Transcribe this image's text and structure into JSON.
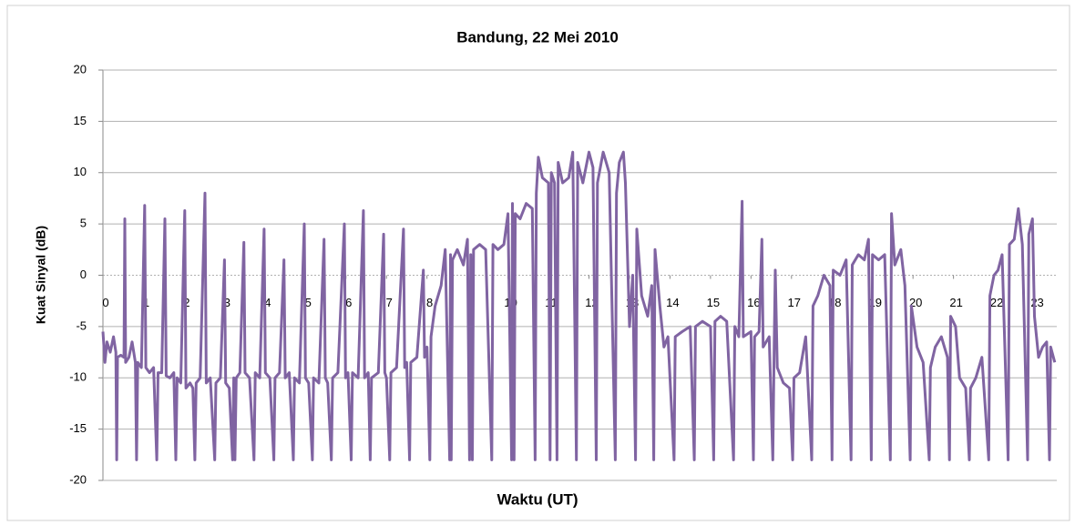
{
  "chart_data": {
    "type": "line",
    "title": "Bandung, 22 Mei 2010",
    "xlabel": "Waktu (UT)",
    "ylabel": "Kuat Sinyal (dB)",
    "color": "#8064a2",
    "grid": true,
    "xlim": [
      0,
      23.55
    ],
    "xticks": [
      0,
      1,
      2,
      3,
      4,
      5,
      6,
      7,
      8,
      9,
      10,
      11,
      12,
      13,
      14,
      15,
      16,
      17,
      18,
      19,
      20,
      21,
      22,
      23
    ],
    "ylim": [
      -20,
      20
    ],
    "yticks": [
      -20,
      -15,
      -10,
      -5,
      0,
      5,
      10,
      15,
      20
    ],
    "x": [
      0,
      0.05,
      0.1,
      0.18,
      0.26,
      0.32,
      0.34,
      0.36,
      0.44,
      0.52,
      0.54,
      0.56,
      0.64,
      0.72,
      0.8,
      0.83,
      0.86,
      0.95,
      1.03,
      1.06,
      1.15,
      1.25,
      1.33,
      1.36,
      1.45,
      1.53,
      1.56,
      1.65,
      1.75,
      1.8,
      1.83,
      1.92,
      2.02,
      2.05,
      2.15,
      2.22,
      2.27,
      2.3,
      2.4,
      2.52,
      2.55,
      2.65,
      2.76,
      2.79,
      2.9,
      3,
      3.03,
      3.12,
      3.2,
      3.23,
      3.26,
      3.29,
      3.38,
      3.48,
      3.51,
      3.62,
      3.73,
      3.76,
      3.87,
      3.98,
      4.01,
      4.12,
      4.22,
      4.25,
      4.36,
      4.47,
      4.5,
      4.6,
      4.7,
      4.73,
      4.85,
      4.97,
      5,
      5.08,
      5.17,
      5.2,
      5.33,
      5.46,
      5.49,
      5.55,
      5.64,
      5.67,
      5.8,
      5.96,
      5.99,
      6.05,
      6.13,
      6.16,
      6.3,
      6.43,
      6.46,
      6.55,
      6.6,
      6.63,
      6.8,
      6.93,
      6.96,
      7,
      7.08,
      7.11,
      7.25,
      7.42,
      7.45,
      7.5,
      7.57,
      7.6,
      7.75,
      7.91,
      7.94,
      8,
      8.07,
      8.1,
      8.2,
      8.35,
      8.45,
      8.56,
      8.58,
      8.6,
      8.63,
      8.75,
      8.9,
      9,
      9.05,
      9.08,
      9.12,
      9.15,
      9.3,
      9.45,
      9.6,
      9.63,
      9.75,
      9.9,
      10,
      10.09,
      10.11,
      10.15,
      10.18,
      10.3,
      10.45,
      10.6,
      10.67,
      10.7,
      10.75,
      10.85,
      11,
      11.04,
      11.07,
      11.15,
      11.21,
      11.24,
      11.35,
      11.5,
      11.6,
      11.69,
      11.72,
      11.85,
      12,
      12.1,
      12.18,
      12.21,
      12.35,
      12.5,
      12.65,
      12.68,
      12.75,
      12.85,
      12.9,
      13,
      13.08,
      13.15,
      13.18,
      13.3,
      13.45,
      13.55,
      13.6,
      13.63,
      13.75,
      13.85,
      13.95,
      14.1,
      14.13,
      14.3,
      14.5,
      14.6,
      14.63,
      14.8,
      15,
      15.08,
      15.11,
      15.25,
      15.4,
      15.57,
      15.6,
      15.7,
      15.78,
      15.81,
      16,
      16.06,
      16.09,
      16.2,
      16.27,
      16.3,
      16.45,
      16.54,
      16.57,
      16.6,
      16.65,
      16.8,
      16.95,
      17.03,
      17.06,
      17.2,
      17.35,
      17.5,
      17.53,
      17.65,
      17.8,
      17.95,
      18,
      18.03,
      18.2,
      18.35,
      18.47,
      18.5,
      18.65,
      18.8,
      18.9,
      18.97,
      19,
      19.15,
      19.3,
      19.44,
      19.47,
      19.55,
      19.7,
      19.8,
      19.93,
      19.96,
      20.1,
      20.25,
      20.4,
      20.43,
      20.55,
      20.7,
      20.85,
      20.9,
      20.93,
      21.05,
      21.15,
      21.3,
      21.39,
      21.42,
      21.55,
      21.7,
      21.87,
      21.9,
      22,
      22.1,
      22.2,
      22.35,
      22.38,
      22.5,
      22.6,
      22.7,
      22.83,
      22.86,
      22.95,
      23,
      23.1,
      23.2,
      23.3,
      23.37,
      23.4,
      23.5
    ],
    "values": [
      -5.5,
      -8.5,
      -6.5,
      -7.5,
      -6,
      -7.5,
      -18,
      -8,
      -7.8,
      -8,
      5.5,
      -8.5,
      -8,
      -6.5,
      -8.5,
      -18,
      -8.5,
      -9,
      6.8,
      -9,
      -9.5,
      -9,
      -18,
      -9.5,
      -9.5,
      5.5,
      -9.8,
      -10,
      -9.5,
      -18,
      -10,
      -10.5,
      6.3,
      -11,
      -10.5,
      -11,
      -18,
      -10.5,
      -10,
      8,
      -10.5,
      -10,
      -18,
      -10.5,
      -10,
      1.5,
      -10.5,
      -11,
      -18,
      -10,
      -18,
      -10,
      -9.5,
      3.2,
      -9.5,
      -10,
      -18,
      -9.5,
      -10,
      4.5,
      -9.5,
      -10,
      -18,
      -10,
      -9.5,
      1.5,
      -10,
      -9.5,
      -18,
      -10,
      -10.5,
      5,
      -10,
      -10.5,
      -18,
      -10,
      -10.5,
      3.5,
      -10,
      -10.5,
      -18,
      -10,
      -9.5,
      5,
      -10,
      -9.5,
      -18,
      -9.5,
      -10,
      6.3,
      -10,
      -9.5,
      -18,
      -10,
      -9.5,
      4,
      -9.5,
      -10,
      -18,
      -9.5,
      -9,
      4.5,
      -9,
      -8.5,
      -18,
      -8.5,
      -8,
      0.5,
      -8,
      -7,
      -18,
      -6,
      -3,
      -1,
      2.5,
      -18,
      2,
      -18,
      1.5,
      2.5,
      1,
      3.5,
      -18,
      2,
      -18,
      2.5,
      3,
      2.5,
      -18,
      3,
      2.5,
      3,
      6,
      -18,
      7,
      -18,
      6,
      5.5,
      7,
      6.5,
      -18,
      8,
      11.5,
      9.5,
      9,
      -18,
      10,
      9,
      -18,
      11,
      9,
      9.5,
      12,
      -18,
      11,
      9,
      12,
      10.5,
      -18,
      9,
      12,
      10,
      -18,
      8,
      11,
      12,
      9,
      -5,
      0,
      -18,
      4.5,
      -2,
      -4,
      -1,
      -18,
      2.5,
      -3,
      -7,
      -6,
      -18,
      -6,
      -5.5,
      -5,
      -18,
      -5,
      -4.5,
      -5,
      -18,
      -4.5,
      -4,
      -4.5,
      -18,
      -5,
      -6,
      7.2,
      -6,
      -5.5,
      -18,
      -6,
      -5.5,
      3.5,
      -7,
      -6,
      -18,
      -7.5,
      0.5,
      -9,
      -10.5,
      -11,
      -18,
      -10,
      -9.5,
      -6,
      -18,
      -3,
      -2,
      0,
      -1,
      -18,
      0.5,
      0,
      1.5,
      -18,
      1,
      2,
      1.5,
      3.5,
      -18,
      2,
      1.5,
      2,
      -18,
      6,
      1,
      2.5,
      -1,
      -18,
      -3,
      -7,
      -8.5,
      -18,
      -9,
      -7,
      -6,
      -8,
      -18,
      -4,
      -5,
      -10,
      -11,
      -18,
      -11,
      -10,
      -8,
      -18,
      -2,
      0,
      0.5,
      2,
      -18,
      3,
      3.5,
      6.5,
      3,
      -18,
      4,
      5.5,
      -4,
      -8,
      -7,
      -6.5,
      -18,
      -7,
      -8.5
    ]
  }
}
